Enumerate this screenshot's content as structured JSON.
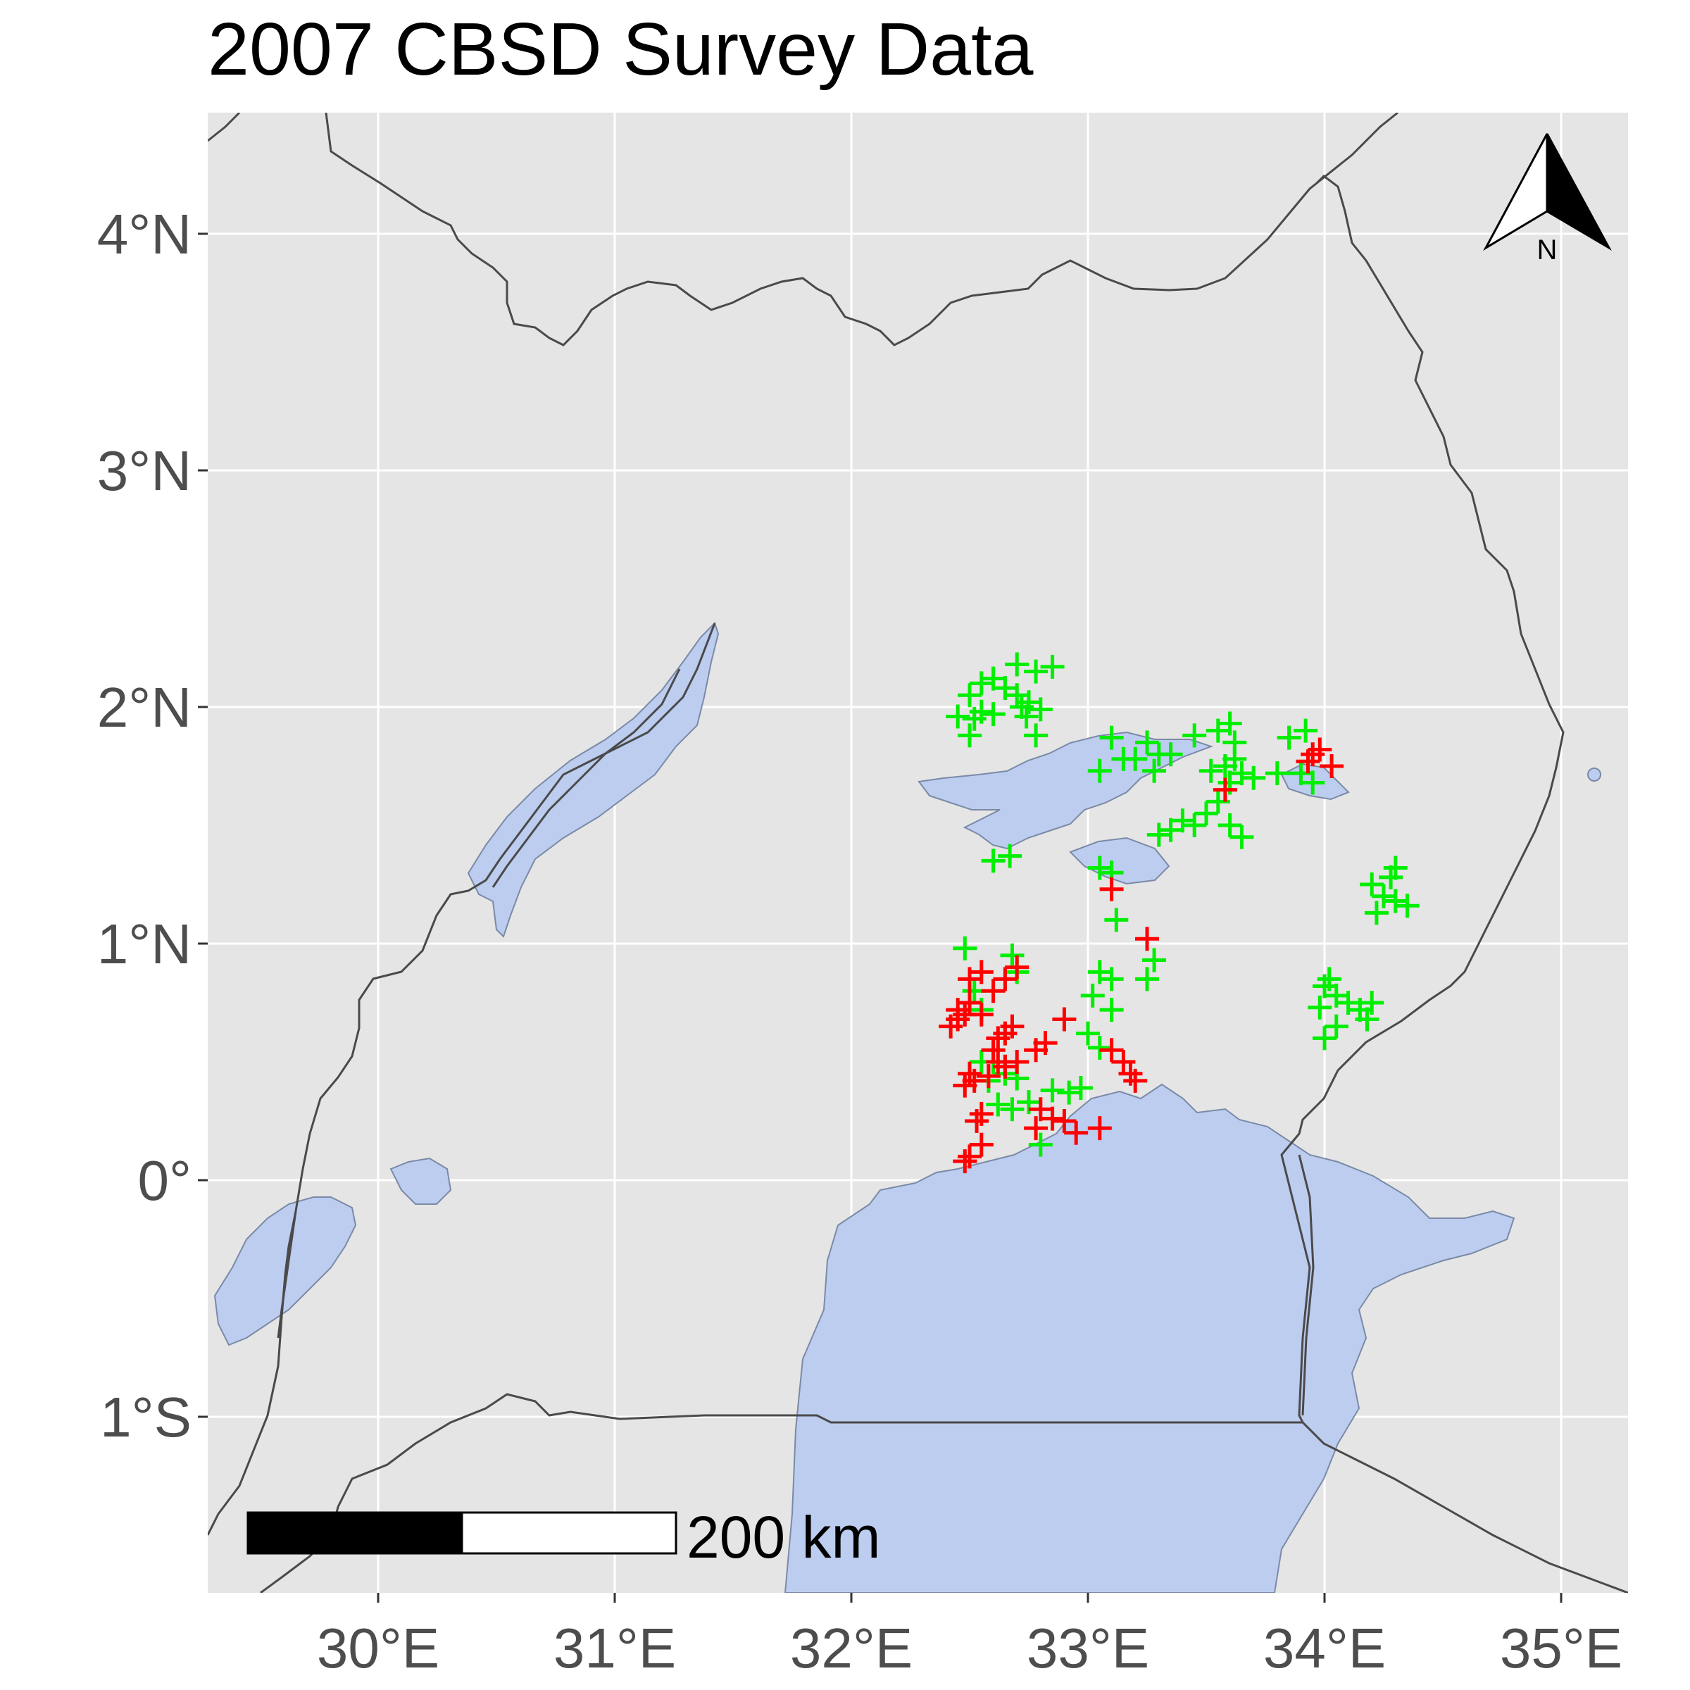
{
  "title": "2007 CBSD Survey Data",
  "colors": {
    "panel": "#e5e5e5",
    "grid": "#ffffff",
    "land": "#ebebeb",
    "water": "#bccdf0",
    "border": "#4a4a4a",
    "survey_positive": "#ff0000",
    "survey_negative": "#00ee00"
  },
  "north_arrow": {
    "label": "N"
  },
  "scale_bar": {
    "label": "200 km"
  },
  "chart_data": {
    "type": "scatter",
    "title": "2007 CBSD Survey Data",
    "xlabel": "",
    "ylabel": "",
    "xlim": [
      29.2,
      35.2
    ],
    "ylim": [
      -1.7,
      4.5
    ],
    "x_ticks": [
      {
        "value": 30,
        "label": "30°E"
      },
      {
        "value": 31,
        "label": "31°E"
      },
      {
        "value": 32,
        "label": "32°E"
      },
      {
        "value": 33,
        "label": "33°E"
      },
      {
        "value": 34,
        "label": "34°E"
      },
      {
        "value": 35,
        "label": "35°E"
      }
    ],
    "y_ticks": [
      {
        "value": 4,
        "label": "4°N"
      },
      {
        "value": 3,
        "label": "3°N"
      },
      {
        "value": 2,
        "label": "2°N"
      },
      {
        "value": 1,
        "label": "1°N"
      },
      {
        "value": 0,
        "label": "0°"
      },
      {
        "value": -1,
        "label": "1°S"
      }
    ],
    "grid": true,
    "series": [
      {
        "color": "#00ee00",
        "marker": "plus",
        "points": [
          [
            32.45,
            1.96
          ],
          [
            32.5,
            2.05
          ],
          [
            32.55,
            2.1
          ],
          [
            32.6,
            2.12
          ],
          [
            32.55,
            1.98
          ],
          [
            32.6,
            1.97
          ],
          [
            32.5,
            1.88
          ],
          [
            32.65,
            2.08
          ],
          [
            32.7,
            2.05
          ],
          [
            32.72,
            2.0
          ],
          [
            32.75,
            2.02
          ],
          [
            32.7,
            2.18
          ],
          [
            32.78,
            2.15
          ],
          [
            32.85,
            2.17
          ],
          [
            32.8,
            1.99
          ],
          [
            32.78,
            1.88
          ],
          [
            32.52,
            1.95
          ],
          [
            32.74,
            1.96
          ],
          [
            33.05,
            1.73
          ],
          [
            33.1,
            1.87
          ],
          [
            33.15,
            1.78
          ],
          [
            33.2,
            1.78
          ],
          [
            33.25,
            1.85
          ],
          [
            33.3,
            1.8
          ],
          [
            33.35,
            1.8
          ],
          [
            33.28,
            1.73
          ],
          [
            33.45,
            1.88
          ],
          [
            33.55,
            1.9
          ],
          [
            33.6,
            1.93
          ],
          [
            33.62,
            1.85
          ],
          [
            33.58,
            1.75
          ],
          [
            33.65,
            1.72
          ],
          [
            33.7,
            1.7
          ],
          [
            33.6,
            1.68
          ],
          [
            33.55,
            1.6
          ],
          [
            33.5,
            1.55
          ],
          [
            33.45,
            1.5
          ],
          [
            33.6,
            1.5
          ],
          [
            33.65,
            1.45
          ],
          [
            33.35,
            1.48
          ],
          [
            33.4,
            1.52
          ],
          [
            33.3,
            1.46
          ],
          [
            33.62,
            1.78
          ],
          [
            33.52,
            1.73
          ],
          [
            33.85,
            1.87
          ],
          [
            33.92,
            1.9
          ],
          [
            33.9,
            1.72
          ],
          [
            33.95,
            1.68
          ],
          [
            33.8,
            1.72
          ],
          [
            32.6,
            1.35
          ],
          [
            32.67,
            1.37
          ],
          [
            33.05,
            1.32
          ],
          [
            33.1,
            1.3
          ],
          [
            33.12,
            1.1
          ],
          [
            34.2,
            1.25
          ],
          [
            34.28,
            1.28
          ],
          [
            34.3,
            1.32
          ],
          [
            34.25,
            1.2
          ],
          [
            34.3,
            1.18
          ],
          [
            34.35,
            1.16
          ],
          [
            34.22,
            1.13
          ],
          [
            33.05,
            0.88
          ],
          [
            33.1,
            0.85
          ],
          [
            33.02,
            0.78
          ],
          [
            33.1,
            0.72
          ],
          [
            33.25,
            0.85
          ],
          [
            33.28,
            0.93
          ],
          [
            34.0,
            0.82
          ],
          [
            34.02,
            0.85
          ],
          [
            34.05,
            0.78
          ],
          [
            33.98,
            0.73
          ],
          [
            34.1,
            0.75
          ],
          [
            34.15,
            0.72
          ],
          [
            34.2,
            0.75
          ],
          [
            34.05,
            0.65
          ],
          [
            34.18,
            0.68
          ],
          [
            34.0,
            0.6
          ],
          [
            32.48,
            0.98
          ],
          [
            32.52,
            0.8
          ],
          [
            32.55,
            0.72
          ],
          [
            32.68,
            0.95
          ],
          [
            32.7,
            0.88
          ],
          [
            32.55,
            0.5
          ],
          [
            32.6,
            0.5
          ],
          [
            32.58,
            0.42
          ],
          [
            32.65,
            0.45
          ],
          [
            32.7,
            0.43
          ],
          [
            32.62,
            0.32
          ],
          [
            32.68,
            0.3
          ],
          [
            32.75,
            0.33
          ],
          [
            32.85,
            0.38
          ],
          [
            32.92,
            0.37
          ],
          [
            32.97,
            0.39
          ],
          [
            33.0,
            0.62
          ],
          [
            33.05,
            0.56
          ],
          [
            32.8,
            0.15
          ]
        ]
      },
      {
        "color": "#ff0000",
        "marker": "plus",
        "points": [
          [
            33.58,
            1.65
          ],
          [
            33.95,
            1.8
          ],
          [
            33.98,
            1.82
          ],
          [
            34.03,
            1.75
          ],
          [
            33.93,
            1.77
          ],
          [
            33.1,
            1.23
          ],
          [
            33.25,
            1.02
          ],
          [
            32.45,
            0.72
          ],
          [
            32.48,
            0.7
          ],
          [
            32.5,
            0.75
          ],
          [
            32.55,
            0.7
          ],
          [
            32.5,
            0.85
          ],
          [
            32.55,
            0.88
          ],
          [
            32.6,
            0.8
          ],
          [
            32.65,
            0.85
          ],
          [
            32.7,
            0.9
          ],
          [
            32.62,
            0.6
          ],
          [
            32.65,
            0.62
          ],
          [
            32.68,
            0.65
          ],
          [
            32.6,
            0.55
          ],
          [
            32.62,
            0.5
          ],
          [
            32.65,
            0.48
          ],
          [
            32.7,
            0.5
          ],
          [
            32.58,
            0.44
          ],
          [
            32.5,
            0.45
          ],
          [
            32.48,
            0.4
          ],
          [
            32.52,
            0.42
          ],
          [
            32.55,
            0.28
          ],
          [
            32.53,
            0.25
          ],
          [
            32.55,
            0.15
          ],
          [
            32.5,
            0.1
          ],
          [
            32.48,
            0.08
          ],
          [
            32.45,
            0.68
          ],
          [
            32.42,
            0.65
          ],
          [
            32.78,
            0.55
          ],
          [
            32.82,
            0.58
          ],
          [
            32.9,
            0.68
          ],
          [
            32.8,
            0.3
          ],
          [
            32.85,
            0.26
          ],
          [
            32.78,
            0.22
          ],
          [
            32.9,
            0.25
          ],
          [
            32.95,
            0.2
          ],
          [
            33.05,
            0.22
          ],
          [
            33.1,
            0.55
          ],
          [
            33.15,
            0.5
          ],
          [
            33.18,
            0.45
          ],
          [
            33.2,
            0.42
          ]
        ]
      }
    ]
  }
}
